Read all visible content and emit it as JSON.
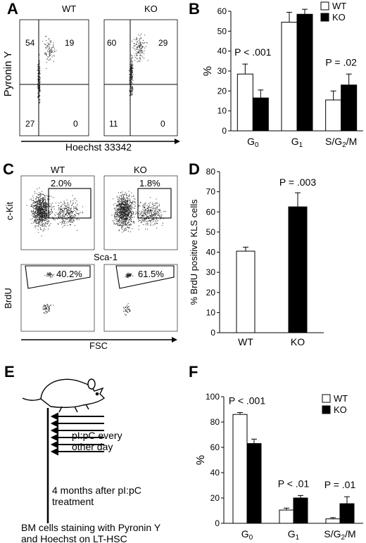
{
  "panels": {
    "A": {
      "letter": "A",
      "genotypes": [
        "WT",
        "KO"
      ],
      "ylabel": "Pyronin Y",
      "xlabel": "Hoechst 33342",
      "axis_scale_x": "(x 100)",
      "axis_scale_y": "(x 100)",
      "ticks": [
        "0",
        "500",
        "1000",
        "1500",
        "2000",
        "2500"
      ],
      "wt_quadrants": {
        "ul": "54",
        "ur": "19",
        "ll": "27",
        "lr": "0"
      },
      "ko_quadrants": {
        "ul": "60",
        "ur": "29",
        "ll": "11",
        "lr": "0"
      }
    },
    "B": {
      "letter": "B"
    },
    "C": {
      "letter": "C",
      "genotypes": [
        "WT",
        "KO"
      ],
      "top_ylabel": "c-Kit",
      "top_xlabel": "Sca-1",
      "bottom_ylabel": "BrdU",
      "bottom_xlabel": "FSC",
      "wt_gate_top": "2.0%",
      "ko_gate_top": "1.8%",
      "wt_gate_bottom": "40.2%",
      "ko_gate_bottom": "61.5%",
      "ticks": [
        "0",
        "200",
        "400",
        "600",
        "800",
        "1000"
      ]
    },
    "D": {
      "letter": "D"
    },
    "E": {
      "letter": "E",
      "injection_text_1": "pI:pC every",
      "injection_text_2": "other day",
      "wait_text_1": "4 months after pI:pC",
      "wait_text_2": "treatment",
      "stain_text_1": "BM cells staining with Pyronin Y",
      "stain_text_2": "and Hoechst on LT-HSC"
    },
    "F": {
      "letter": "F"
    }
  },
  "chart_data": [
    {
      "id": "B",
      "type": "bar",
      "categories": [
        "G0",
        "G1",
        "S/G2/M"
      ],
      "category_main": [
        "G",
        "G",
        "S/G"
      ],
      "category_sub": [
        "0",
        "1",
        "2"
      ],
      "category_tail": [
        "",
        "",
        "/M"
      ],
      "series": [
        {
          "name": "WT",
          "color": "#ffffff",
          "values": [
            28.5,
            54.5,
            15.5
          ],
          "errors": [
            5,
            5,
            4.5
          ]
        },
        {
          "name": "KO",
          "color": "#000000",
          "values": [
            16.5,
            58.5,
            23
          ],
          "errors": [
            4,
            2.5,
            5.5
          ]
        }
      ],
      "ylabel": "%",
      "ylim": [
        0,
        60
      ],
      "yticks": [
        "0",
        "10",
        "20",
        "30",
        "40",
        "50",
        "60"
      ],
      "annotations": [
        {
          "text": "P < .001",
          "category": 0
        },
        {
          "text": "P = .02",
          "category": 2
        }
      ],
      "legend": [
        "WT",
        "KO"
      ]
    },
    {
      "id": "D",
      "type": "bar",
      "categories": [
        "WT",
        "KO"
      ],
      "values": [
        40.5,
        62.5
      ],
      "errors": [
        2,
        7
      ],
      "colors": [
        "#ffffff",
        "#000000"
      ],
      "ylabel": "% BrdU positive KLS cells",
      "ylim": [
        0,
        80
      ],
      "yticks": [
        "0",
        "10",
        "20",
        "30",
        "40",
        "50",
        "60",
        "70",
        "80"
      ],
      "annotations": [
        {
          "text": "P = .003",
          "category": 1
        }
      ]
    },
    {
      "id": "F",
      "type": "bar",
      "categories": [
        "G0",
        "G1",
        "S/G2/M"
      ],
      "category_main": [
        "G",
        "G",
        "S/G"
      ],
      "category_sub": [
        "0",
        "1",
        "2"
      ],
      "category_tail": [
        "",
        "",
        "/M"
      ],
      "series": [
        {
          "name": "WT",
          "color": "#ffffff",
          "values": [
            86,
            10.5,
            3.5
          ],
          "errors": [
            1.5,
            1.5,
            1
          ]
        },
        {
          "name": "KO",
          "color": "#000000",
          "values": [
            63,
            20,
            15.5
          ],
          "errors": [
            3.5,
            2,
            5.5
          ]
        }
      ],
      "ylabel": "%",
      "ylim": [
        0,
        100
      ],
      "yticks": [
        "0",
        "20",
        "40",
        "60",
        "80",
        "100"
      ],
      "annotations": [
        {
          "text": "P < .001",
          "category": 0
        },
        {
          "text": "P < .01",
          "category": 1
        },
        {
          "text": "P = .01",
          "category": 2
        }
      ],
      "legend": [
        "WT",
        "KO"
      ]
    }
  ]
}
